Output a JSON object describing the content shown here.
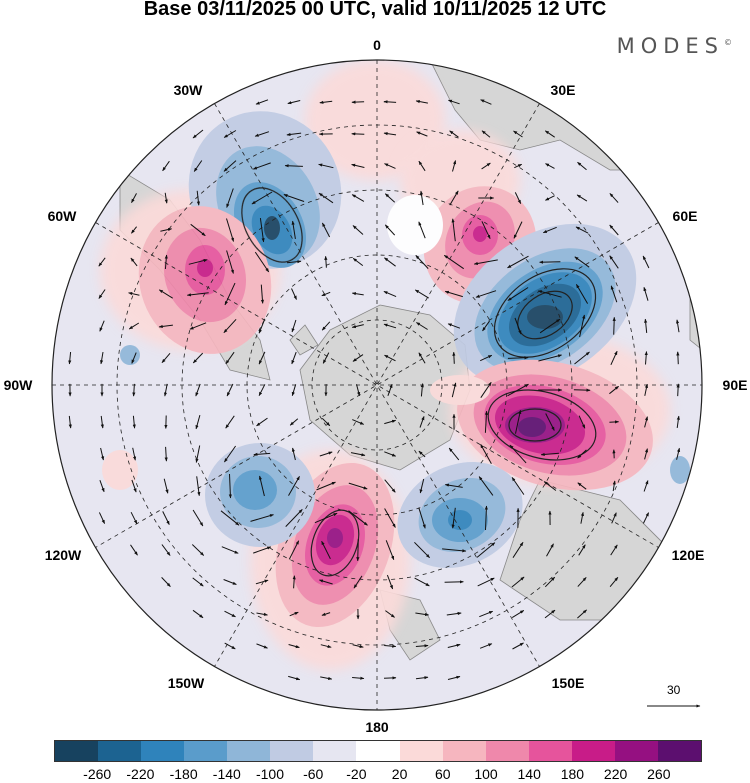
{
  "title": "Base 03/11/2025 00 UTC, valid 10/11/2025 12 UTC",
  "brand": "MODES",
  "brand_mark": "©",
  "longitude_labels": {
    "n": "0",
    "s": "180",
    "e30": "30E",
    "e60": "60E",
    "e90": "90E",
    "e120": "120E",
    "e150": "150E",
    "w30": "30W",
    "w60": "60W",
    "w90": "90W",
    "w120": "120W",
    "w150": "150W"
  },
  "reference_vector": "30",
  "colorbar": {
    "colors": [
      "#17425f",
      "#1c6391",
      "#2f83bb",
      "#5a9ccb",
      "#8fb6d8",
      "#c0cbe3",
      "#e6e6f1",
      "#ffffff",
      "#fbdad9",
      "#f6b6bf",
      "#ef88ab",
      "#e6549c",
      "#c81c88",
      "#951081",
      "#5c0f6f"
    ],
    "ticks": [
      "-260",
      "-220",
      "-180",
      "-140",
      "-100",
      "-60",
      "-20",
      "20",
      "60",
      "100",
      "140",
      "180",
      "220",
      "260"
    ]
  },
  "anomaly_centers": [
    {
      "name": "low-30w",
      "color": "#1c6391"
    },
    {
      "name": "high-60w",
      "color": "#c81c88"
    },
    {
      "name": "high-20e",
      "color": "#c81c88"
    },
    {
      "name": "low-60e",
      "color": "#17425f"
    },
    {
      "name": "high-100e",
      "color": "#5c0f6f"
    },
    {
      "name": "low-140e",
      "color": "#2f83bb"
    },
    {
      "name": "high-165w",
      "color": "#951081"
    },
    {
      "name": "low-135w",
      "color": "#5a9ccb"
    }
  ]
}
